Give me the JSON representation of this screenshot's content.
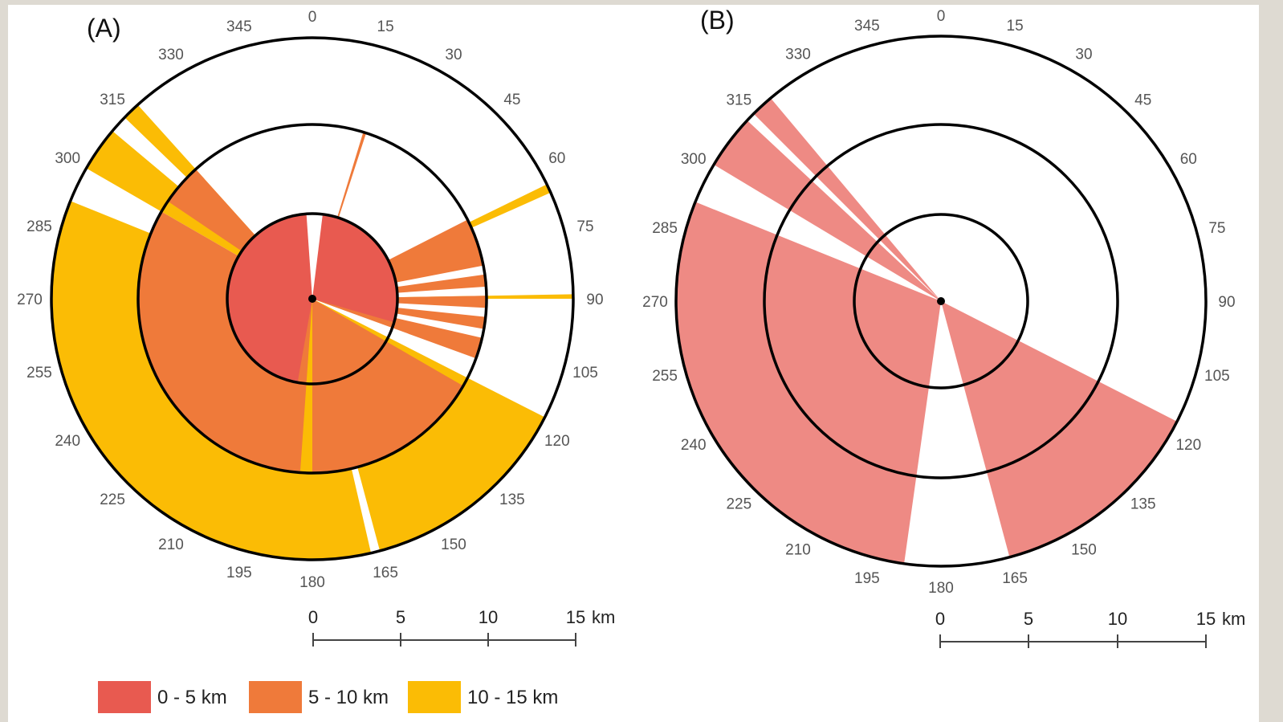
{
  "colors": {
    "zone_0_5": "#e85a50",
    "zone_5_10": "#ef7a3a",
    "zone_10_15": "#fbbc05",
    "panel_b_fill": "#ee8a84",
    "ring": "#000000"
  },
  "bearing_labels": [
    "0",
    "15",
    "30",
    "45",
    "60",
    "75",
    "90",
    "105",
    "120",
    "135",
    "150",
    "165",
    "180",
    "195",
    "210",
    "225",
    "240",
    "255",
    "270",
    "285",
    "300",
    "315",
    "330",
    "345"
  ],
  "panels": [
    {
      "label": "(A)",
      "sectors_0_5": [
        [
          7,
          106
        ],
        [
          190,
          356
        ]
      ],
      "sectors_5_10": [
        [
          17,
          18
        ],
        [
          63,
          79
        ],
        [
          82,
          86
        ],
        [
          89,
          93
        ],
        [
          96,
          100
        ],
        [
          103,
          110
        ],
        [
          120,
          180
        ],
        [
          184,
          300
        ],
        [
          304,
          318
        ]
      ],
      "sectors_10_15": [
        [
          64,
          66
        ],
        [
          89,
          90
        ],
        [
          117,
          165
        ],
        [
          167,
          180
        ],
        [
          180,
          292
        ],
        [
          300,
          310
        ],
        [
          314,
          318
        ]
      ]
    },
    {
      "label": "(B)",
      "sectors": [
        [
          117,
          165
        ],
        [
          188,
          292
        ],
        [
          301,
          313
        ],
        [
          315,
          320
        ]
      ]
    }
  ],
  "scale_bar": {
    "ticks": [
      "0",
      "5",
      "10",
      "15"
    ],
    "unit": "km"
  },
  "legend": [
    {
      "label": "0 - 5 km",
      "color_key": "zone_0_5"
    },
    {
      "label": "5 - 10 km",
      "color_key": "zone_5_10"
    },
    {
      "label": "10 - 15 km",
      "color_key": "zone_10_15"
    }
  ]
}
